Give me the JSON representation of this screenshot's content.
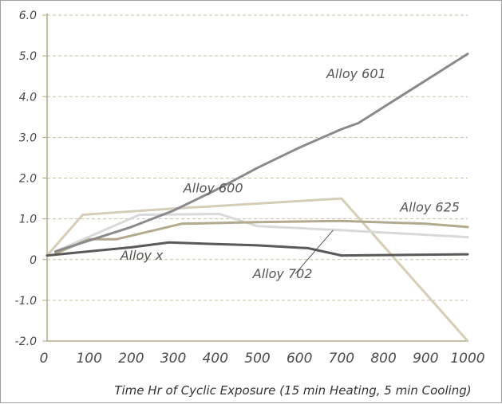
{
  "chart_data": {
    "type": "line",
    "title": "",
    "xlabel": "Time Hr of Cyclic Exposure (15 min Heating, 5 min Cooling)",
    "ylabel": "",
    "xlim": [
      0,
      1000
    ],
    "ylim": [
      -2.0,
      6.0
    ],
    "x_ticks": [
      "0",
      "100",
      "200",
      "300",
      "400",
      "500",
      "600",
      "700",
      "800",
      "900",
      "1000"
    ],
    "y_ticks": [
      "6.0",
      "5.0",
      "4.0",
      "3.0",
      "2.0",
      "1.0",
      "0",
      "-1.0",
      "-2.0"
    ],
    "grid": "horizontal-dashed",
    "legend": "none",
    "series": [
      {
        "name": "Alloy 601",
        "color": "#8a8a8a",
        "points": [
          [
            20,
            0.2
          ],
          [
            200,
            0.8
          ],
          [
            300,
            1.2
          ],
          [
            400,
            1.7
          ],
          [
            500,
            2.25
          ],
          [
            600,
            2.75
          ],
          [
            700,
            3.2
          ],
          [
            740,
            3.35
          ],
          [
            1000,
            5.05
          ]
        ]
      },
      {
        "name": "Alloy 600",
        "color": "#d6cdb8",
        "points": [
          [
            0,
            0.1
          ],
          [
            85,
            1.1
          ],
          [
            300,
            1.25
          ],
          [
            700,
            1.5
          ],
          [
            1000,
            -2.0
          ]
        ]
      },
      {
        "name": "Alloy 625",
        "color": "#b3a98e",
        "points": [
          [
            20,
            0.15
          ],
          [
            100,
            0.5
          ],
          [
            165,
            0.5
          ],
          [
            320,
            0.88
          ],
          [
            500,
            0.92
          ],
          [
            700,
            0.95
          ],
          [
            900,
            0.88
          ],
          [
            1000,
            0.8
          ]
        ]
      },
      {
        "name": "Alloy 702",
        "color": "#d9d9d9",
        "points": [
          [
            20,
            0.2
          ],
          [
            220,
            1.1
          ],
          [
            410,
            1.12
          ],
          [
            500,
            0.82
          ],
          [
            700,
            0.72
          ],
          [
            1000,
            0.55
          ]
        ]
      },
      {
        "name": "Alloy x",
        "color": "#595959",
        "points": [
          [
            0,
            0.1
          ],
          [
            200,
            0.3
          ],
          [
            290,
            0.42
          ],
          [
            400,
            0.38
          ],
          [
            500,
            0.35
          ],
          [
            620,
            0.28
          ],
          [
            700,
            0.1
          ],
          [
            1000,
            0.13
          ]
        ]
      }
    ],
    "annotations": [
      {
        "text": "Alloy 601",
        "x": 735,
        "y": 4.45
      },
      {
        "text": "Alloy 600",
        "x": 395,
        "y": 1.65
      },
      {
        "text": "Alloy 625",
        "x": 910,
        "y": 1.18
      },
      {
        "text": "Alloy x",
        "x": 225,
        "y": 0.0
      },
      {
        "text": "Alloy 702",
        "x": 560,
        "y": -0.45
      }
    ]
  }
}
